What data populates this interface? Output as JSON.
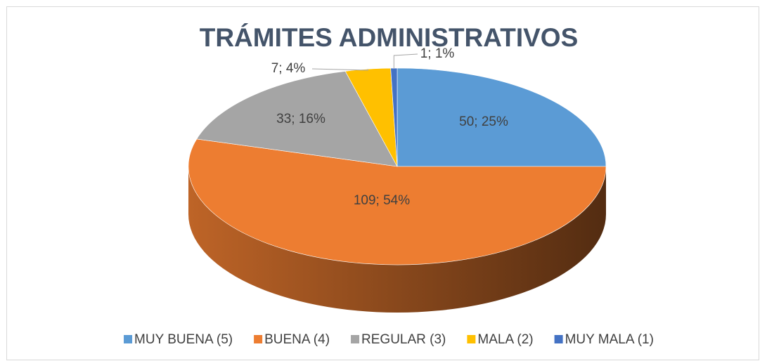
{
  "chart_data": {
    "type": "pie",
    "title": "TRÁMITES ADMINISTRATIVOS",
    "categories": [
      "MUY BUENA (5)",
      "BUENA (4)",
      "REGULAR (3)",
      "MALA (2)",
      "MUY MALA (1)"
    ],
    "values": [
      50,
      109,
      33,
      7,
      1
    ],
    "value_labels": [
      "50; 25%",
      "109; 54%",
      "33; 16%",
      "7; 4%",
      "1; 1%"
    ],
    "colors": [
      "#5b9bd5",
      "#ed7d31",
      "#a5a5a5",
      "#ffc000",
      "#4472c4"
    ],
    "legend": "bottom"
  }
}
